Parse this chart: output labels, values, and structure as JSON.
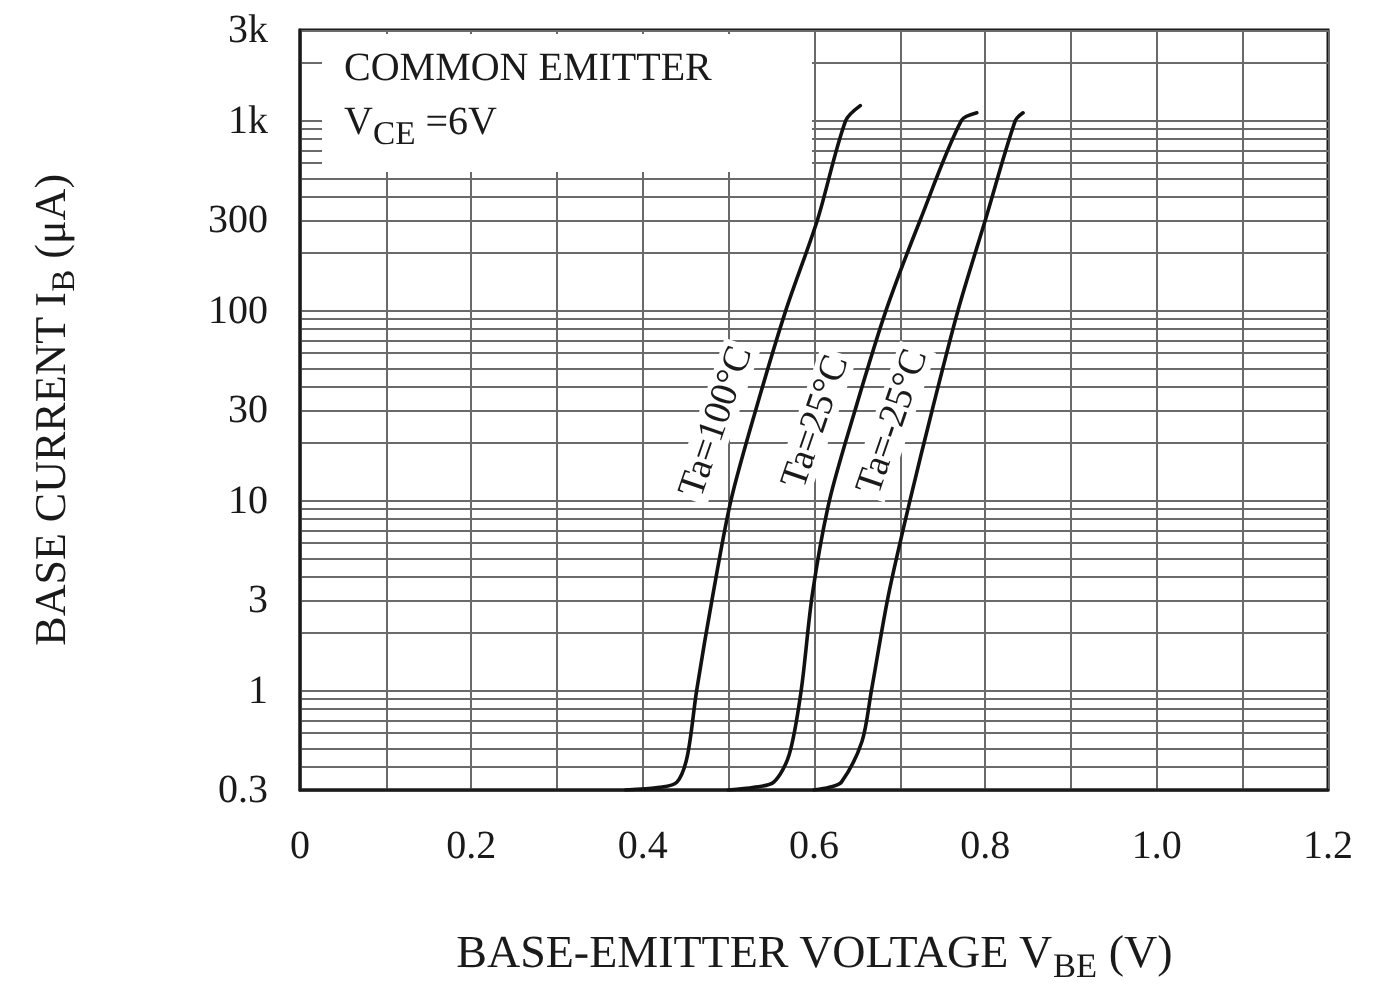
{
  "chart_data": {
    "type": "line",
    "xlabel": "BASE-EMITTER VOLTAGE V$_{BE}$ (V)",
    "ylabel": "BASE CURRENT I$_{B}$ (μA)",
    "annotations": [
      "COMMON EMITTER",
      "V$_{CE}$ =6V"
    ],
    "series": [
      {
        "name": "Ta=100°C",
        "color": "#111111",
        "x": [
          0.38,
          0.42,
          0.44,
          0.452,
          0.463,
          0.482,
          0.503,
          0.532,
          0.567,
          0.604,
          0.637,
          0.654
        ],
        "values": [
          0.3,
          0.31,
          0.33,
          0.45,
          1,
          3.2,
          10,
          30,
          100,
          300,
          1000,
          1200
        ]
      },
      {
        "name": "Ta=25°C",
        "color": "#111111",
        "x": [
          0.5,
          0.53,
          0.553,
          0.571,
          0.585,
          0.598,
          0.618,
          0.648,
          0.684,
          0.724,
          0.772,
          0.79
        ],
        "values": [
          0.3,
          0.31,
          0.33,
          0.46,
          1,
          3.2,
          10,
          30,
          100,
          300,
          1000,
          1100
        ]
      },
      {
        "name": "Ta=-25°C",
        "color": "#111111",
        "x": [
          0.6,
          0.618,
          0.632,
          0.656,
          0.667,
          0.687,
          0.712,
          0.738,
          0.768,
          0.8,
          0.835,
          0.844
        ],
        "values": [
          0.3,
          0.31,
          0.33,
          0.54,
          1,
          3.2,
          10,
          30,
          100,
          300,
          1000,
          1100
        ]
      }
    ],
    "xlim": [
      0,
      1.2
    ],
    "xticks": [
      0,
      {
        "value": 0.1,
        "label": null
      },
      0.2,
      {
        "value": 0.3,
        "label": null
      },
      0.4,
      {
        "value": 0.5,
        "label": null
      },
      0.6,
      {
        "value": 0.7,
        "label": null
      },
      0.8,
      {
        "value": 0.9,
        "label": null
      },
      {
        "value": 1,
        "label": "1.0"
      },
      {
        "value": 1.1,
        "label": null
      },
      1.2
    ],
    "ylim": [
      0.3,
      3000
    ],
    "yticks": [
      0.3,
      {
        "value": 0.4,
        "label": null
      },
      {
        "value": 0.5,
        "label": null
      },
      {
        "value": 0.6,
        "label": null
      },
      {
        "value": 0.7,
        "label": null
      },
      {
        "value": 0.8,
        "label": null
      },
      {
        "value": 0.9,
        "label": null
      },
      1,
      {
        "value": 2,
        "label": null
      },
      3,
      {
        "value": 4,
        "label": null
      },
      {
        "value": 5,
        "label": null
      },
      {
        "value": 6,
        "label": null
      },
      {
        "value": 7,
        "label": null
      },
      {
        "value": 8,
        "label": null
      },
      {
        "value": 9,
        "label": null
      },
      10,
      {
        "value": 20,
        "label": null
      },
      30,
      {
        "value": 40,
        "label": null
      },
      {
        "value": 50,
        "label": null
      },
      {
        "value": 60,
        "label": null
      },
      {
        "value": 70,
        "label": null
      },
      {
        "value": 80,
        "label": null
      },
      {
        "value": 90,
        "label": null
      },
      100,
      {
        "value": 200,
        "label": null
      },
      300,
      {
        "value": 400,
        "label": null
      },
      {
        "value": 500,
        "label": null
      },
      {
        "value": 600,
        "label": null
      },
      {
        "value": 700,
        "label": null
      },
      {
        "value": 800,
        "label": null
      },
      {
        "value": 900,
        "label": null
      },
      {
        "value": 1000,
        "label": "1k"
      },
      {
        "value": 2000,
        "label": null
      },
      {
        "value": 3000,
        "label": "3k"
      }
    ],
    "log": "y",
    "grid": true
  }
}
